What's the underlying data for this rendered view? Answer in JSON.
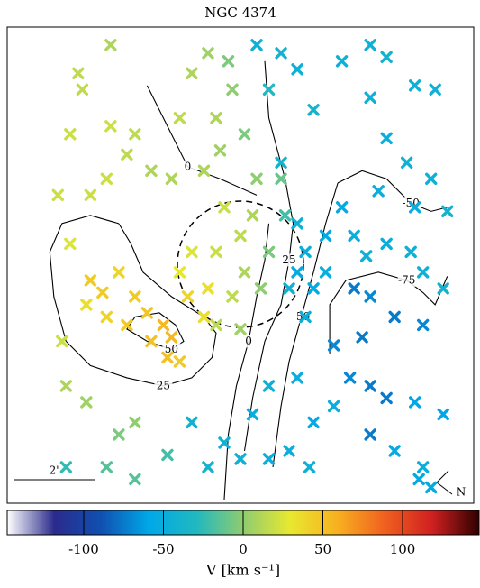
{
  "chart_data": {
    "type": "scatter",
    "title": "NGC 4374",
    "marker": "cross",
    "xlim": [
      -5.75,
      5.75
    ],
    "ylim": [
      -5.89,
      5.84
    ],
    "x": [
      -3.7,
      -3.4,
      -3.0,
      -2.6,
      -2.3,
      -1.9,
      -1.7,
      -2.2,
      -2.8,
      -3.3,
      -3.8,
      -1.8,
      -1.5,
      -1.3,
      -0.9,
      -0.8,
      -4.2,
      -4.5,
      -3.7,
      -3.3,
      -2.8,
      -3.2,
      -2.6,
      -2.2,
      -1.7,
      -3.9,
      -4.2,
      -3.2,
      -4.0,
      -4.4,
      -4.3,
      -3.8,
      -3.0,
      -2.6,
      -3.3,
      -2.6,
      -1.8,
      -4.3,
      -0.8,
      -0.4,
      -0.4,
      0.0,
      -0.6,
      0.3,
      0.1,
      0.5,
      0.7,
      0.4,
      1.0,
      1.1,
      -0.9,
      -1.5,
      -0.6,
      -0.2,
      -1.2,
      -0.8,
      -0.3,
      0.1,
      -0.5,
      0.0,
      -0.6,
      -1.2,
      -1.5,
      -0.2,
      0.7,
      1.0,
      0.4,
      1.4,
      1.8,
      2.5,
      3.2,
      3.6,
      4.3,
      4.8,
      3.2,
      3.6,
      4.1,
      4.7,
      5.1,
      4.3,
      3.4,
      2.5,
      2.1,
      1.6,
      1.4,
      1.8,
      1.6,
      1.2,
      1.4,
      1.0,
      2.8,
      3.6,
      4.2,
      4.5,
      5.0,
      3.2,
      2.8,
      3.8,
      4.5,
      3.0,
      2.3,
      2.7,
      3.2,
      3.6,
      4.3,
      3.2,
      5.0,
      2.3,
      1.4,
      0.7,
      0.3,
      1.2,
      1.8,
      0.7,
      1.7,
      0.0,
      -1.2,
      4.5,
      4.4,
      4.7,
      3.8,
      3.1,
      2.1
    ],
    "y": [
      -0.4,
      -0.7,
      -0.2,
      -0.8,
      -1.2,
      -1.5,
      -1.8,
      -1.9,
      -1.5,
      -1.3,
      -1.0,
      -2.3,
      -2.4,
      -0.8,
      -1.3,
      -0.6,
      0.5,
      1.7,
      1.7,
      2.1,
      2.7,
      3.4,
      3.2,
      2.3,
      2.1,
      4.3,
      3.2,
      5.4,
      4.7,
      -1.9,
      -3.0,
      -3.4,
      -4.2,
      -3.9,
      -5.0,
      -5.3,
      -4.7,
      -5.0,
      -5.0,
      -4.4,
      1.4,
      0.7,
      0.3,
      1.2,
      -0.2,
      -0.6,
      0.3,
      2.1,
      2.1,
      1.2,
      2.3,
      3.6,
      3.6,
      4.3,
      4.7,
      5.2,
      5.0,
      3.2,
      2.8,
      -1.6,
      -1.5,
      0.3,
      -0.2,
      -0.8,
      4.3,
      5.2,
      5.4,
      4.8,
      3.8,
      5.0,
      5.4,
      5.1,
      4.4,
      4.3,
      4.1,
      3.1,
      2.5,
      2.1,
      1.3,
      1.4,
      1.8,
      1.4,
      0.7,
      0.3,
      -0.2,
      -0.6,
      -1.3,
      -0.6,
      1.0,
      2.5,
      0.7,
      0.5,
      0.3,
      -0.2,
      -0.6,
      -0.8,
      -0.6,
      -1.3,
      -1.5,
      -1.8,
      -2.0,
      -2.8,
      -3.0,
      -3.3,
      -3.4,
      -4.2,
      -3.7,
      -3.5,
      -2.8,
      -3.0,
      -3.7,
      -4.6,
      -3.9,
      -4.8,
      -5.0,
      -4.8,
      -3.9,
      -5.0,
      -5.3,
      -5.5,
      -4.6,
      0.2,
      -0.2
    ],
    "values": [
      45,
      45,
      40,
      45,
      48,
      55,
      55,
      50,
      45,
      40,
      35,
      50,
      45,
      40,
      35,
      35,
      25,
      20,
      20,
      20,
      15,
      20,
      15,
      10,
      10,
      15,
      20,
      10,
      15,
      20,
      10,
      5,
      -5,
      0,
      -15,
      -15,
      -20,
      -25,
      -40,
      -45,
      20,
      15,
      20,
      10,
      10,
      0,
      -5,
      0,
      -10,
      -20,
      10,
      15,
      10,
      0,
      10,
      5,
      -5,
      -5,
      5,
      5,
      15,
      25,
      30,
      15,
      -30,
      -40,
      -45,
      -45,
      -40,
      -45,
      -45,
      -40,
      -45,
      -45,
      -45,
      -50,
      -45,
      -45,
      -40,
      -50,
      -50,
      -55,
      -55,
      -50,
      -55,
      -55,
      -50,
      -45,
      -45,
      -40,
      -50,
      -50,
      -45,
      -45,
      -40,
      -70,
      -75,
      -75,
      -70,
      -75,
      -70,
      -70,
      -75,
      -75,
      -60,
      -75,
      -60,
      -50,
      -50,
      -45,
      -50,
      -50,
      -55,
      -50,
      -45,
      -45,
      -40,
      -50,
      -55,
      -55,
      -55,
      -45,
      -50
    ],
    "contours": [
      {
        "level": 0,
        "x": [
          -2.3,
          -1.8,
          -1.3,
          -0.5,
          0.4
        ],
        "y": [
          4.4,
          3.4,
          2.4,
          2.1,
          1.7
        ]
      },
      {
        "level": 0,
        "x": [
          0.7,
          0.6,
          0.4,
          0.2,
          -0.1,
          -0.3,
          -0.4
        ],
        "y": [
          1.0,
          0.1,
          -0.8,
          -1.9,
          -3.0,
          -4.2,
          -5.8
        ]
      },
      {
        "level": 25,
        "x": [
          -3.0,
          -3.7,
          -4.4,
          -4.7,
          -4.6,
          -4.3,
          -3.7,
          -2.8,
          -1.9,
          -1.2,
          -0.7,
          -0.6,
          -0.9,
          -1.7,
          -2.4,
          -2.7,
          -3.0
        ],
        "y": [
          1.0,
          1.2,
          1.0,
          0.3,
          -0.8,
          -1.9,
          -2.5,
          -2.8,
          -3.0,
          -2.8,
          -2.3,
          -1.7,
          -1.3,
          -0.8,
          -0.2,
          0.5,
          1.0
        ]
      },
      {
        "level": 50,
        "x": [
          -2.6,
          -2.0,
          -1.6,
          -1.4,
          -1.7,
          -2.3,
          -2.8,
          -2.6
        ],
        "y": [
          -1.3,
          -1.2,
          -1.5,
          -1.9,
          -2.1,
          -1.9,
          -1.6,
          -1.3
        ]
      },
      {
        "level": 25,
        "x": [
          0.6,
          0.7,
          1.1,
          1.3,
          1.2,
          1.0,
          0.6,
          0.3,
          0.1
        ],
        "y": [
          5.0,
          3.6,
          2.1,
          1.0,
          0.1,
          -1.0,
          -1.9,
          -3.3,
          -4.6
        ]
      },
      {
        "level": -50,
        "x": [
          2.4,
          2.1,
          1.8,
          1.5,
          1.2,
          1.0,
          0.8
        ],
        "y": [
          2.0,
          1.0,
          -0.2,
          -1.3,
          -2.4,
          -3.5,
          -5.0
        ]
      },
      {
        "level": -50,
        "x": [
          2.4,
          3.0,
          3.6,
          4.2,
          4.7,
          5.1
        ],
        "y": [
          2.0,
          2.3,
          2.1,
          1.5,
          1.3,
          1.4
        ]
      },
      {
        "level": -75,
        "x": [
          2.2,
          2.2,
          2.6,
          3.4,
          4.1,
          4.5,
          4.8,
          5.1
        ],
        "y": [
          -2.2,
          -1.0,
          -0.4,
          -0.2,
          -0.4,
          -0.7,
          -1.0,
          -0.3
        ]
      }
    ],
    "scale_bar": {
      "value": 2,
      "label": "2'"
    },
    "compass_label": "N",
    "colorbar_label": "V [km s⁻¹]",
    "clim": [
      -148,
      148
    ],
    "cticks": [
      -100,
      -50,
      0,
      50,
      100
    ],
    "colormap": [
      "#ffffff",
      "#2a2a8c",
      "#1050b0",
      "#00a8e8",
      "#20b8c0",
      "#90cc70",
      "#e8e830",
      "#f8b020",
      "#f06020",
      "#d02020",
      "#300000"
    ]
  }
}
